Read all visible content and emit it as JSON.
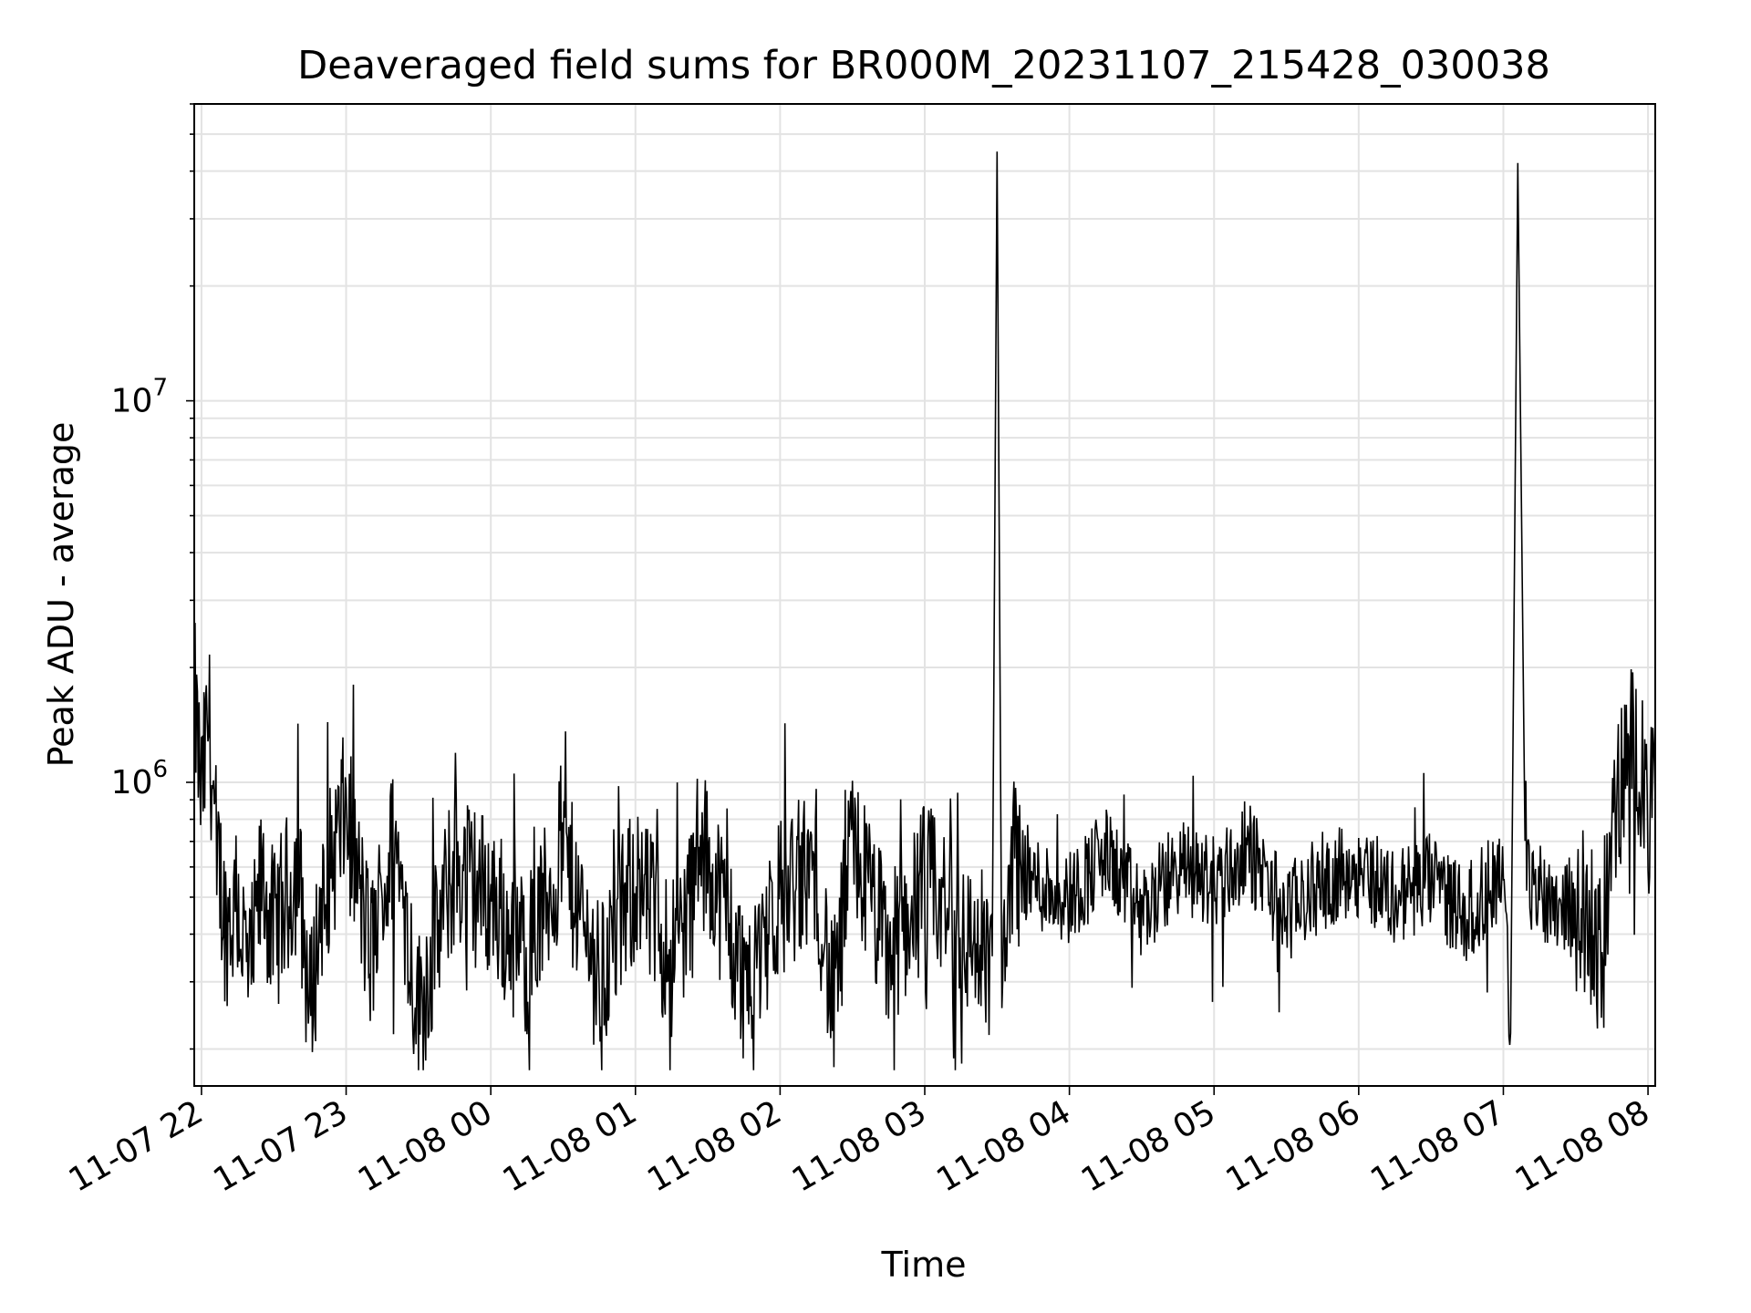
{
  "chart_data": {
    "type": "line",
    "title": "Deaveraged field sums for BR000M_20231107_215428_030038",
    "xlabel": "Time",
    "ylabel": "Peak ADU - average",
    "y_scale": "log",
    "ylim": [
      160000,
      60000000
    ],
    "xlim": [
      "2023-11-07 21:57",
      "2023-11-08 08:03"
    ],
    "x_ticks": [
      "11-07 22",
      "11-07 23",
      "11-08 00",
      "11-08 01",
      "11-08 02",
      "11-08 03",
      "11-08 04",
      "11-08 05",
      "11-08 06",
      "11-08 07",
      "11-08 08"
    ],
    "y_ticks": [
      {
        "value": 1000000,
        "base": "10",
        "exp": "6"
      },
      {
        "value": 10000000,
        "base": "10",
        "exp": "7"
      }
    ],
    "grid": true,
    "line_color": "#000000",
    "series": [
      {
        "x": [
          "2023-11-07 21:57",
          "2023-11-07 22:00",
          "2023-11-07 22:03",
          "2023-11-07 22:06",
          "2023-11-07 22:10",
          "2023-11-07 22:15",
          "2023-11-07 22:20",
          "2023-11-07 22:25",
          "2023-11-07 22:30",
          "2023-11-07 22:40",
          "2023-11-07 22:45",
          "2023-11-07 22:50",
          "2023-11-07 23:00",
          "2023-11-07 23:10",
          "2023-11-07 23:20",
          "2023-11-07 23:30",
          "2023-11-07 23:45",
          "2023-11-08 00:00",
          "2023-11-08 00:15",
          "2023-11-08 00:30",
          "2023-11-08 00:45",
          "2023-11-08 01:00",
          "2023-11-08 01:15",
          "2023-11-08 01:30",
          "2023-11-08 01:45",
          "2023-11-08 02:00",
          "2023-11-08 02:15",
          "2023-11-08 02:22",
          "2023-11-08 02:30",
          "2023-11-08 02:45",
          "2023-11-08 03:00",
          "2023-11-08 03:15",
          "2023-11-08 03:28",
          "2023-11-08 03:30",
          "2023-11-08 03:32",
          "2023-11-08 03:36",
          "2023-11-08 03:45",
          "2023-11-08 04:00",
          "2023-11-08 04:15",
          "2023-11-08 04:30",
          "2023-11-08 04:45",
          "2023-11-08 05:00",
          "2023-11-08 05:15",
          "2023-11-08 05:30",
          "2023-11-08 05:45",
          "2023-11-08 06:00",
          "2023-11-08 06:15",
          "2023-11-08 06:30",
          "2023-11-08 06:45",
          "2023-11-08 07:00",
          "2023-11-08 07:03",
          "2023-11-08 07:06",
          "2023-11-08 07:09",
          "2023-11-08 07:20",
          "2023-11-08 07:35",
          "2023-11-08 07:40",
          "2023-11-08 07:45",
          "2023-11-08 07:50",
          "2023-11-08 07:55",
          "2023-11-08 08:00",
          "2023-11-08 08:03"
        ],
        "values": [
          1700000,
          900000,
          1500000,
          700000,
          420000,
          480000,
          300000,
          550000,
          400000,
          600000,
          250000,
          500000,
          850000,
          350000,
          700000,
          250000,
          600000,
          500000,
          350000,
          650000,
          300000,
          550000,
          350000,
          650000,
          300000,
          500000,
          600000,
          250000,
          700000,
          350000,
          550000,
          400000,
          350000,
          45000000,
          300000,
          650000,
          550000,
          500000,
          650000,
          450000,
          600000,
          550000,
          650000,
          450000,
          550000,
          600000,
          500000,
          550000,
          450000,
          600000,
          220000,
          42000000,
          550000,
          500000,
          450000,
          350000,
          700000,
          1100000,
          1300000,
          800000,
          900000
        ]
      }
    ]
  }
}
